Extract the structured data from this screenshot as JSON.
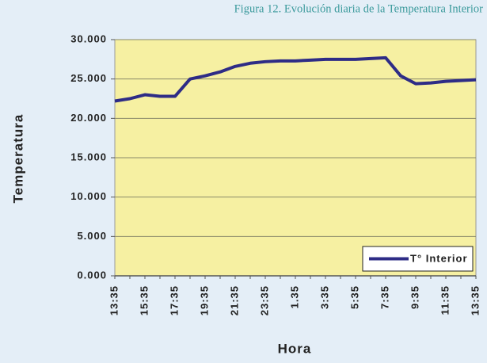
{
  "chart_data": {
    "type": "line",
    "title": "Figura 12. Evolución diaria de la Temperatura Interior",
    "y_label": "Temperatura",
    "x_label": "Hora",
    "categories": [
      "13:35",
      null,
      "15:35",
      null,
      "17:35",
      null,
      "19:35",
      null,
      "21:35",
      null,
      "23:35",
      null,
      "1.35",
      null,
      "3:35",
      null,
      "5:35",
      null,
      "7:35",
      null,
      "9:35",
      null,
      "11:35",
      null,
      "13:35"
    ],
    "series": [
      {
        "name": "T° Interior",
        "color": "#2e2c86",
        "values": [
          22.2,
          22.5,
          23.0,
          22.8,
          22.8,
          25.0,
          25.4,
          25.9,
          26.6,
          27.0,
          27.2,
          27.3,
          27.3,
          27.4,
          27.5,
          27.5,
          27.5,
          27.6,
          27.7,
          25.4,
          24.4,
          24.5,
          24.7,
          24.8,
          24.9
        ]
      }
    ],
    "ylim": [
      0,
      30
    ],
    "yticks": [
      {
        "value": 0,
        "label": "0.000"
      },
      {
        "value": 5,
        "label": "5.000"
      },
      {
        "value": 10,
        "label": "10.000"
      },
      {
        "value": 15,
        "label": "15.000"
      },
      {
        "value": 20,
        "label": "20.000"
      },
      {
        "value": 25,
        "label": "25.000"
      },
      {
        "value": 30,
        "label": "30.000"
      }
    ],
    "grid": true,
    "legend": "lower right",
    "plot_color": "#f6f0a2"
  }
}
